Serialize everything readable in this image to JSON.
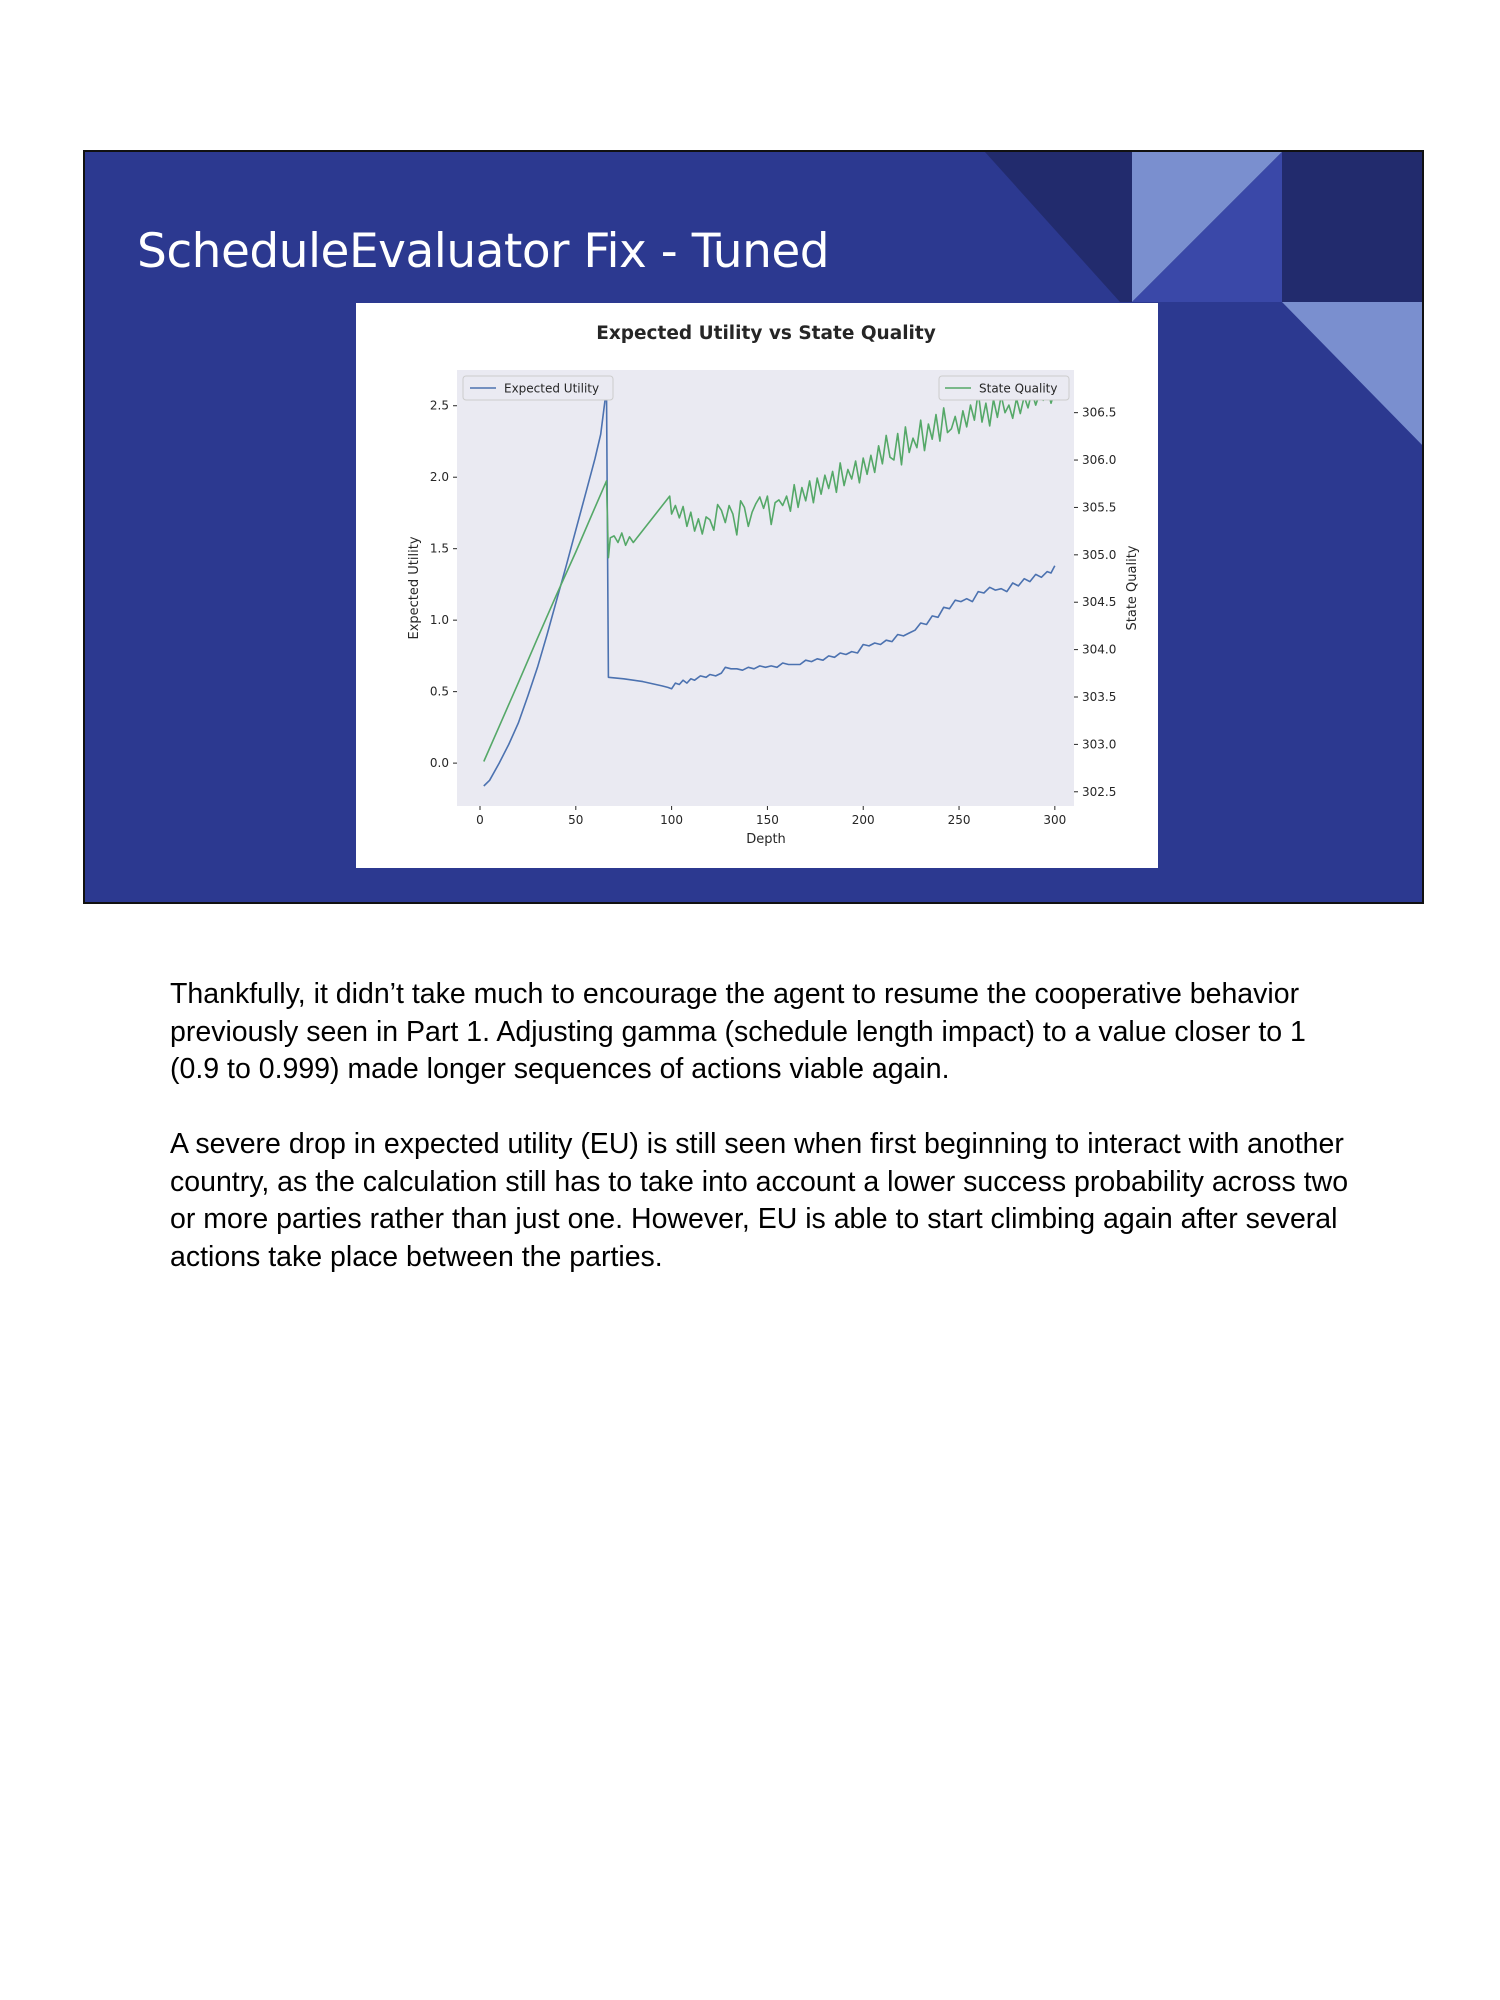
{
  "slide": {
    "title": "ScheduleEvaluator Fix - Tuned",
    "colors": {
      "background": "#2c3990",
      "dark_accent": "#222b6d",
      "light_accent": "#7a8fcf",
      "mid_accent": "#3a48a8"
    }
  },
  "notes": {
    "paragraphs": [
      "Thankfully, it didn’t take much to encourage the agent to resume the cooperative behavior previously seen in Part 1. Adjusting gamma (schedule length impact) to a value closer to 1 (0.9 to 0.999) made longer sequences of actions viable again.",
      "A severe drop in expected utility (EU) is still seen when first beginning to interact with another country, as the calculation still has to take into account a lower success probability across two or more parties rather than just one. However, EU is able to start climbing again after several actions take place between the parties."
    ]
  },
  "chart_data": {
    "type": "line",
    "title": "Expected Utility vs State Quality",
    "xlabel": "Depth",
    "ylabel": "Expected Utility",
    "y2label": "State Quality",
    "xlim": [
      -12,
      310
    ],
    "ylim": [
      -0.3,
      2.75
    ],
    "y2lim": [
      302.35,
      306.95
    ],
    "xticks": [
      0,
      50,
      100,
      150,
      200,
      250,
      300
    ],
    "xtick_labels": [
      "0",
      "50",
      "100",
      "150",
      "200",
      "250",
      "300"
    ],
    "yticks": [
      0.0,
      0.5,
      1.0,
      1.5,
      2.0,
      2.5
    ],
    "ytick_labels": [
      "0.0",
      "0.5",
      "1.0",
      "1.5",
      "2.0",
      "2.5"
    ],
    "y2ticks": [
      302.5,
      303.0,
      303.5,
      304.0,
      304.5,
      305.0,
      305.5,
      306.0,
      306.5
    ],
    "y2tick_labels": [
      "302.5",
      "303.0",
      "303.5",
      "304.0",
      "304.5",
      "305.0",
      "305.5",
      "306.0",
      "306.5"
    ],
    "grid": false,
    "background": "#eaeaf2",
    "series": [
      {
        "name": "Expected Utility",
        "axis": "left",
        "color": "#4c72b0",
        "legend": "top-left",
        "points": [
          [
            2,
            -0.16
          ],
          [
            5,
            -0.12
          ],
          [
            10,
            0.0
          ],
          [
            15,
            0.13
          ],
          [
            20,
            0.28
          ],
          [
            25,
            0.47
          ],
          [
            30,
            0.67
          ],
          [
            35,
            0.9
          ],
          [
            40,
            1.14
          ],
          [
            45,
            1.38
          ],
          [
            50,
            1.63
          ],
          [
            55,
            1.88
          ],
          [
            60,
            2.13
          ],
          [
            63,
            2.3
          ],
          [
            66,
            2.62
          ],
          [
            67,
            0.6
          ],
          [
            75,
            0.59
          ],
          [
            85,
            0.57
          ],
          [
            95,
            0.54
          ],
          [
            98,
            0.53
          ],
          [
            100,
            0.52
          ],
          [
            102,
            0.56
          ],
          [
            104,
            0.55
          ],
          [
            106,
            0.58
          ],
          [
            108,
            0.56
          ],
          [
            110,
            0.59
          ],
          [
            112,
            0.58
          ],
          [
            115,
            0.61
          ],
          [
            118,
            0.6
          ],
          [
            120,
            0.62
          ],
          [
            123,
            0.61
          ],
          [
            126,
            0.63
          ],
          [
            128,
            0.67
          ],
          [
            131,
            0.66
          ],
          [
            134,
            0.66
          ],
          [
            137,
            0.65
          ],
          [
            140,
            0.67
          ],
          [
            143,
            0.66
          ],
          [
            146,
            0.68
          ],
          [
            149,
            0.67
          ],
          [
            152,
            0.68
          ],
          [
            155,
            0.67
          ],
          [
            158,
            0.7
          ],
          [
            161,
            0.69
          ],
          [
            164,
            0.69
          ],
          [
            167,
            0.69
          ],
          [
            170,
            0.72
          ],
          [
            173,
            0.71
          ],
          [
            176,
            0.73
          ],
          [
            179,
            0.72
          ],
          [
            182,
            0.75
          ],
          [
            185,
            0.74
          ],
          [
            188,
            0.77
          ],
          [
            191,
            0.76
          ],
          [
            194,
            0.78
          ],
          [
            197,
            0.77
          ],
          [
            200,
            0.83
          ],
          [
            203,
            0.82
          ],
          [
            206,
            0.84
          ],
          [
            209,
            0.83
          ],
          [
            212,
            0.86
          ],
          [
            215,
            0.85
          ],
          [
            218,
            0.9
          ],
          [
            221,
            0.89
          ],
          [
            224,
            0.91
          ],
          [
            227,
            0.93
          ],
          [
            230,
            0.98
          ],
          [
            233,
            0.97
          ],
          [
            236,
            1.03
          ],
          [
            239,
            1.02
          ],
          [
            242,
            1.09
          ],
          [
            245,
            1.08
          ],
          [
            248,
            1.14
          ],
          [
            251,
            1.13
          ],
          [
            254,
            1.15
          ],
          [
            257,
            1.13
          ],
          [
            260,
            1.2
          ],
          [
            263,
            1.19
          ],
          [
            266,
            1.23
          ],
          [
            269,
            1.21
          ],
          [
            272,
            1.22
          ],
          [
            275,
            1.2
          ],
          [
            278,
            1.26
          ],
          [
            281,
            1.24
          ],
          [
            284,
            1.29
          ],
          [
            287,
            1.27
          ],
          [
            290,
            1.32
          ],
          [
            293,
            1.3
          ],
          [
            296,
            1.34
          ],
          [
            298,
            1.33
          ],
          [
            300,
            1.38
          ]
        ]
      },
      {
        "name": "State Quality",
        "axis": "right",
        "color": "#55a868",
        "legend": "top-right",
        "points": [
          [
            2,
            302.82
          ],
          [
            10,
            303.19
          ],
          [
            20,
            303.65
          ],
          [
            30,
            304.12
          ],
          [
            40,
            304.58
          ],
          [
            50,
            305.03
          ],
          [
            60,
            305.5
          ],
          [
            66,
            305.78
          ],
          [
            67,
            304.97
          ],
          [
            68,
            305.18
          ],
          [
            70,
            305.2
          ],
          [
            72,
            305.13
          ],
          [
            74,
            305.23
          ],
          [
            76,
            305.1
          ],
          [
            78,
            305.19
          ],
          [
            80,
            305.13
          ],
          [
            99,
            305.62
          ],
          [
            100,
            305.43
          ],
          [
            102,
            305.52
          ],
          [
            104,
            305.39
          ],
          [
            106,
            305.51
          ],
          [
            108,
            305.3
          ],
          [
            110,
            305.45
          ],
          [
            112,
            305.25
          ],
          [
            114,
            305.38
          ],
          [
            116,
            305.22
          ],
          [
            118,
            305.4
          ],
          [
            120,
            305.37
          ],
          [
            122,
            305.26
          ],
          [
            124,
            305.53
          ],
          [
            126,
            305.47
          ],
          [
            128,
            305.34
          ],
          [
            130,
            305.52
          ],
          [
            132,
            305.43
          ],
          [
            134,
            305.21
          ],
          [
            136,
            305.57
          ],
          [
            138,
            305.5
          ],
          [
            140,
            305.3
          ],
          [
            142,
            305.45
          ],
          [
            144,
            305.54
          ],
          [
            146,
            305.61
          ],
          [
            148,
            305.49
          ],
          [
            150,
            305.62
          ],
          [
            152,
            305.32
          ],
          [
            154,
            305.55
          ],
          [
            156,
            305.58
          ],
          [
            158,
            305.52
          ],
          [
            160,
            305.62
          ],
          [
            162,
            305.46
          ],
          [
            164,
            305.74
          ],
          [
            166,
            305.5
          ],
          [
            168,
            305.71
          ],
          [
            170,
            305.57
          ],
          [
            172,
            305.78
          ],
          [
            174,
            305.55
          ],
          [
            176,
            305.81
          ],
          [
            178,
            305.64
          ],
          [
            180,
            305.84
          ],
          [
            182,
            305.7
          ],
          [
            184,
            305.88
          ],
          [
            186,
            305.66
          ],
          [
            188,
            305.97
          ],
          [
            190,
            305.73
          ],
          [
            192,
            305.9
          ],
          [
            194,
            305.8
          ],
          [
            196,
            305.99
          ],
          [
            198,
            305.76
          ],
          [
            200,
            306.02
          ],
          [
            202,
            305.85
          ],
          [
            204,
            306.05
          ],
          [
            206,
            305.87
          ],
          [
            208,
            306.15
          ],
          [
            210,
            305.96
          ],
          [
            212,
            306.26
          ],
          [
            214,
            306.03
          ],
          [
            216,
            306.0
          ],
          [
            218,
            306.28
          ],
          [
            220,
            305.95
          ],
          [
            222,
            306.35
          ],
          [
            224,
            306.08
          ],
          [
            226,
            306.23
          ],
          [
            228,
            306.13
          ],
          [
            230,
            306.42
          ],
          [
            232,
            306.1
          ],
          [
            234,
            306.38
          ],
          [
            236,
            306.22
          ],
          [
            238,
            306.48
          ],
          [
            240,
            306.2
          ],
          [
            242,
            306.55
          ],
          [
            244,
            306.29
          ],
          [
            246,
            306.33
          ],
          [
            248,
            306.46
          ],
          [
            250,
            306.28
          ],
          [
            252,
            306.52
          ],
          [
            254,
            306.35
          ],
          [
            256,
            306.58
          ],
          [
            258,
            306.42
          ],
          [
            260,
            306.72
          ],
          [
            262,
            306.4
          ],
          [
            264,
            306.6
          ],
          [
            266,
            306.36
          ],
          [
            268,
            306.64
          ],
          [
            270,
            306.45
          ],
          [
            272,
            306.68
          ],
          [
            274,
            306.5
          ],
          [
            276,
            306.58
          ],
          [
            278,
            306.44
          ],
          [
            280,
            306.65
          ],
          [
            282,
            306.49
          ],
          [
            284,
            306.67
          ],
          [
            286,
            306.55
          ],
          [
            288,
            306.72
          ],
          [
            290,
            306.58
          ],
          [
            292,
            306.7
          ],
          [
            294,
            306.63
          ],
          [
            296,
            306.77
          ],
          [
            298,
            306.6
          ],
          [
            300,
            306.72
          ]
        ]
      }
    ]
  }
}
